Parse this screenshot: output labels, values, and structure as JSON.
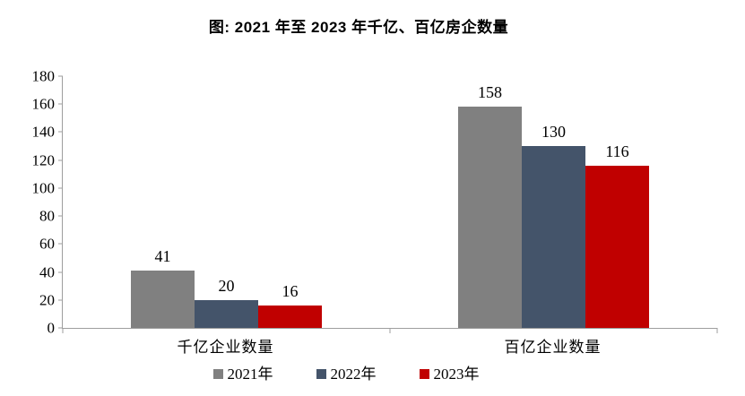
{
  "title": "图:  2021 年至 2023 年千亿、百亿房企数量",
  "colors": {
    "axis": "#9e9e9e",
    "title_text": "#000000",
    "label_text": "#000000",
    "background": "#ffffff"
  },
  "chart_data": {
    "type": "bar",
    "title": "图:  2021 年至 2023 年千亿、百亿房企数量",
    "categories": [
      "千亿企业数量",
      "百亿企业数量"
    ],
    "series": [
      {
        "name": "2021年",
        "color": "#808080",
        "values": [
          41,
          158
        ]
      },
      {
        "name": "2022年",
        "color": "#44546A",
        "values": [
          20,
          130
        ]
      },
      {
        "name": "2023年",
        "color": "#C00000",
        "values": [
          16,
          116
        ]
      }
    ],
    "xlabel": "",
    "ylabel": "",
    "ylim": [
      0,
      180
    ],
    "ytick_step": 20,
    "grid": false,
    "legend_position": "bottom",
    "bar_value_labels": true
  }
}
